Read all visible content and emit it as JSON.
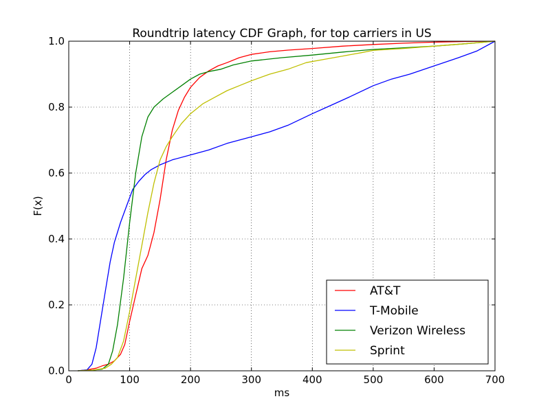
{
  "chart_data": {
    "type": "line",
    "title": "Roundtrip latency CDF Graph, for top carriers in US",
    "xlabel": "ms",
    "ylabel": "F(x)",
    "xlim": [
      0,
      700
    ],
    "ylim": [
      0.0,
      1.0
    ],
    "xticks": [
      "0",
      "100",
      "200",
      "300",
      "400",
      "500",
      "600",
      "700"
    ],
    "yticks": [
      "0.0",
      "0.2",
      "0.4",
      "0.6",
      "0.8",
      "1.0"
    ],
    "grid": true,
    "legend_position": "bottom-right",
    "series": [
      {
        "name": "AT&T",
        "color": "#ff0000",
        "points": [
          [
            15,
            0
          ],
          [
            30,
            0.003
          ],
          [
            45,
            0.008
          ],
          [
            55,
            0.015
          ],
          [
            65,
            0.02
          ],
          [
            75,
            0.03
          ],
          [
            85,
            0.05
          ],
          [
            92,
            0.08
          ],
          [
            100,
            0.15
          ],
          [
            110,
            0.23
          ],
          [
            120,
            0.31
          ],
          [
            130,
            0.35
          ],
          [
            140,
            0.42
          ],
          [
            150,
            0.52
          ],
          [
            160,
            0.64
          ],
          [
            170,
            0.73
          ],
          [
            180,
            0.79
          ],
          [
            190,
            0.83
          ],
          [
            200,
            0.86
          ],
          [
            215,
            0.89
          ],
          [
            230,
            0.91
          ],
          [
            245,
            0.925
          ],
          [
            260,
            0.935
          ],
          [
            280,
            0.95
          ],
          [
            300,
            0.96
          ],
          [
            330,
            0.968
          ],
          [
            360,
            0.973
          ],
          [
            400,
            0.978
          ],
          [
            450,
            0.985
          ],
          [
            500,
            0.99
          ],
          [
            550,
            0.994
          ],
          [
            600,
            0.997
          ],
          [
            650,
            0.999
          ],
          [
            700,
            1.0
          ]
        ]
      },
      {
        "name": "T-Mobile",
        "color": "#0000ff",
        "points": [
          [
            15,
            0
          ],
          [
            30,
            0.003
          ],
          [
            38,
            0.02
          ],
          [
            45,
            0.07
          ],
          [
            52,
            0.15
          ],
          [
            60,
            0.24
          ],
          [
            68,
            0.33
          ],
          [
            75,
            0.39
          ],
          [
            85,
            0.45
          ],
          [
            95,
            0.5
          ],
          [
            105,
            0.55
          ],
          [
            115,
            0.575
          ],
          [
            125,
            0.595
          ],
          [
            135,
            0.61
          ],
          [
            150,
            0.625
          ],
          [
            170,
            0.64
          ],
          [
            200,
            0.655
          ],
          [
            230,
            0.67
          ],
          [
            260,
            0.69
          ],
          [
            300,
            0.71
          ],
          [
            330,
            0.725
          ],
          [
            360,
            0.745
          ],
          [
            400,
            0.78
          ],
          [
            430,
            0.805
          ],
          [
            460,
            0.83
          ],
          [
            500,
            0.865
          ],
          [
            530,
            0.885
          ],
          [
            560,
            0.9
          ],
          [
            600,
            0.925
          ],
          [
            640,
            0.95
          ],
          [
            670,
            0.97
          ],
          [
            700,
            1.0
          ]
        ]
      },
      {
        "name": "Verizon Wireless",
        "color": "#008000",
        "points": [
          [
            15,
            0
          ],
          [
            40,
            0.002
          ],
          [
            55,
            0.005
          ],
          [
            65,
            0.02
          ],
          [
            72,
            0.06
          ],
          [
            80,
            0.14
          ],
          [
            90,
            0.28
          ],
          [
            100,
            0.45
          ],
          [
            110,
            0.6
          ],
          [
            120,
            0.71
          ],
          [
            130,
            0.77
          ],
          [
            140,
            0.8
          ],
          [
            155,
            0.825
          ],
          [
            170,
            0.845
          ],
          [
            185,
            0.865
          ],
          [
            200,
            0.885
          ],
          [
            215,
            0.9
          ],
          [
            230,
            0.908
          ],
          [
            250,
            0.915
          ],
          [
            270,
            0.928
          ],
          [
            300,
            0.94
          ],
          [
            350,
            0.95
          ],
          [
            400,
            0.958
          ],
          [
            450,
            0.967
          ],
          [
            500,
            0.975
          ],
          [
            550,
            0.98
          ],
          [
            600,
            0.985
          ],
          [
            650,
            0.992
          ],
          [
            700,
            1.0
          ]
        ]
      },
      {
        "name": "Sprint",
        "color": "#bfbf00",
        "points": [
          [
            15,
            0
          ],
          [
            40,
            0.002
          ],
          [
            60,
            0.008
          ],
          [
            70,
            0.02
          ],
          [
            80,
            0.04
          ],
          [
            90,
            0.09
          ],
          [
            100,
            0.18
          ],
          [
            110,
            0.28
          ],
          [
            120,
            0.38
          ],
          [
            130,
            0.48
          ],
          [
            140,
            0.57
          ],
          [
            150,
            0.64
          ],
          [
            160,
            0.68
          ],
          [
            170,
            0.71
          ],
          [
            185,
            0.75
          ],
          [
            200,
            0.78
          ],
          [
            220,
            0.81
          ],
          [
            240,
            0.83
          ],
          [
            260,
            0.85
          ],
          [
            280,
            0.865
          ],
          [
            300,
            0.88
          ],
          [
            330,
            0.9
          ],
          [
            360,
            0.915
          ],
          [
            390,
            0.935
          ],
          [
            420,
            0.945
          ],
          [
            450,
            0.955
          ],
          [
            480,
            0.965
          ],
          [
            500,
            0.972
          ],
          [
            550,
            0.978
          ],
          [
            600,
            0.985
          ],
          [
            650,
            0.992
          ],
          [
            700,
            1.0
          ]
        ]
      }
    ]
  }
}
